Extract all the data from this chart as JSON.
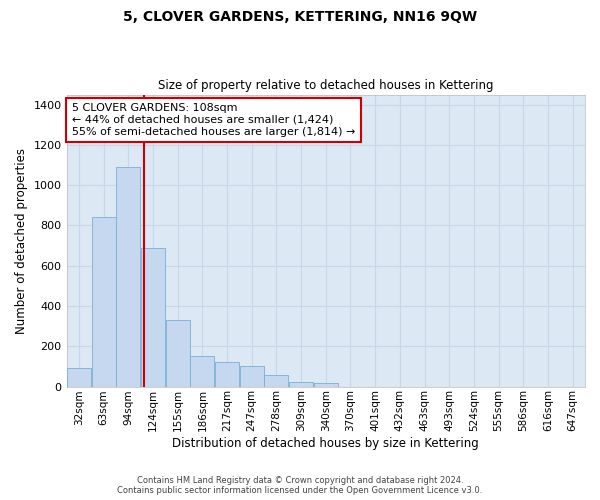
{
  "title": "5, CLOVER GARDENS, KETTERING, NN16 9QW",
  "subtitle": "Size of property relative to detached houses in Kettering",
  "xlabel": "Distribution of detached houses by size in Kettering",
  "ylabel": "Number of detached properties",
  "footer_line1": "Contains HM Land Registry data © Crown copyright and database right 2024.",
  "footer_line2": "Contains public sector information licensed under the Open Government Licence v3.0.",
  "annotation_line1": "5 CLOVER GARDENS: 108sqm",
  "annotation_line2": "← 44% of detached houses are smaller (1,424)",
  "annotation_line3": "55% of semi-detached houses are larger (1,814) →",
  "bar_color": "#c5d8ef",
  "bar_edge_color": "#7bafd4",
  "grid_color": "#c8d8ea",
  "background_color": "#dce8f4",
  "vline_color": "#cc0000",
  "annotation_box_edge": "#cc0000",
  "annotation_box_face": "#ffffff",
  "bin_labels": [
    "32sqm",
    "63sqm",
    "94sqm",
    "124sqm",
    "155sqm",
    "186sqm",
    "217sqm",
    "247sqm",
    "278sqm",
    "309sqm",
    "340sqm",
    "370sqm",
    "401sqm",
    "432sqm",
    "463sqm",
    "493sqm",
    "524sqm",
    "555sqm",
    "586sqm",
    "616sqm",
    "647sqm"
  ],
  "bar_values": [
    90,
    840,
    1090,
    690,
    330,
    150,
    120,
    100,
    55,
    25,
    18,
    0,
    0,
    0,
    0,
    0,
    0,
    0,
    0,
    0,
    0
  ],
  "ylim": [
    0,
    1450
  ],
  "yticks": [
    0,
    200,
    400,
    600,
    800,
    1000,
    1200,
    1400
  ],
  "vline_x": 2.62,
  "figsize": [
    6.0,
    5.0
  ],
  "dpi": 100
}
